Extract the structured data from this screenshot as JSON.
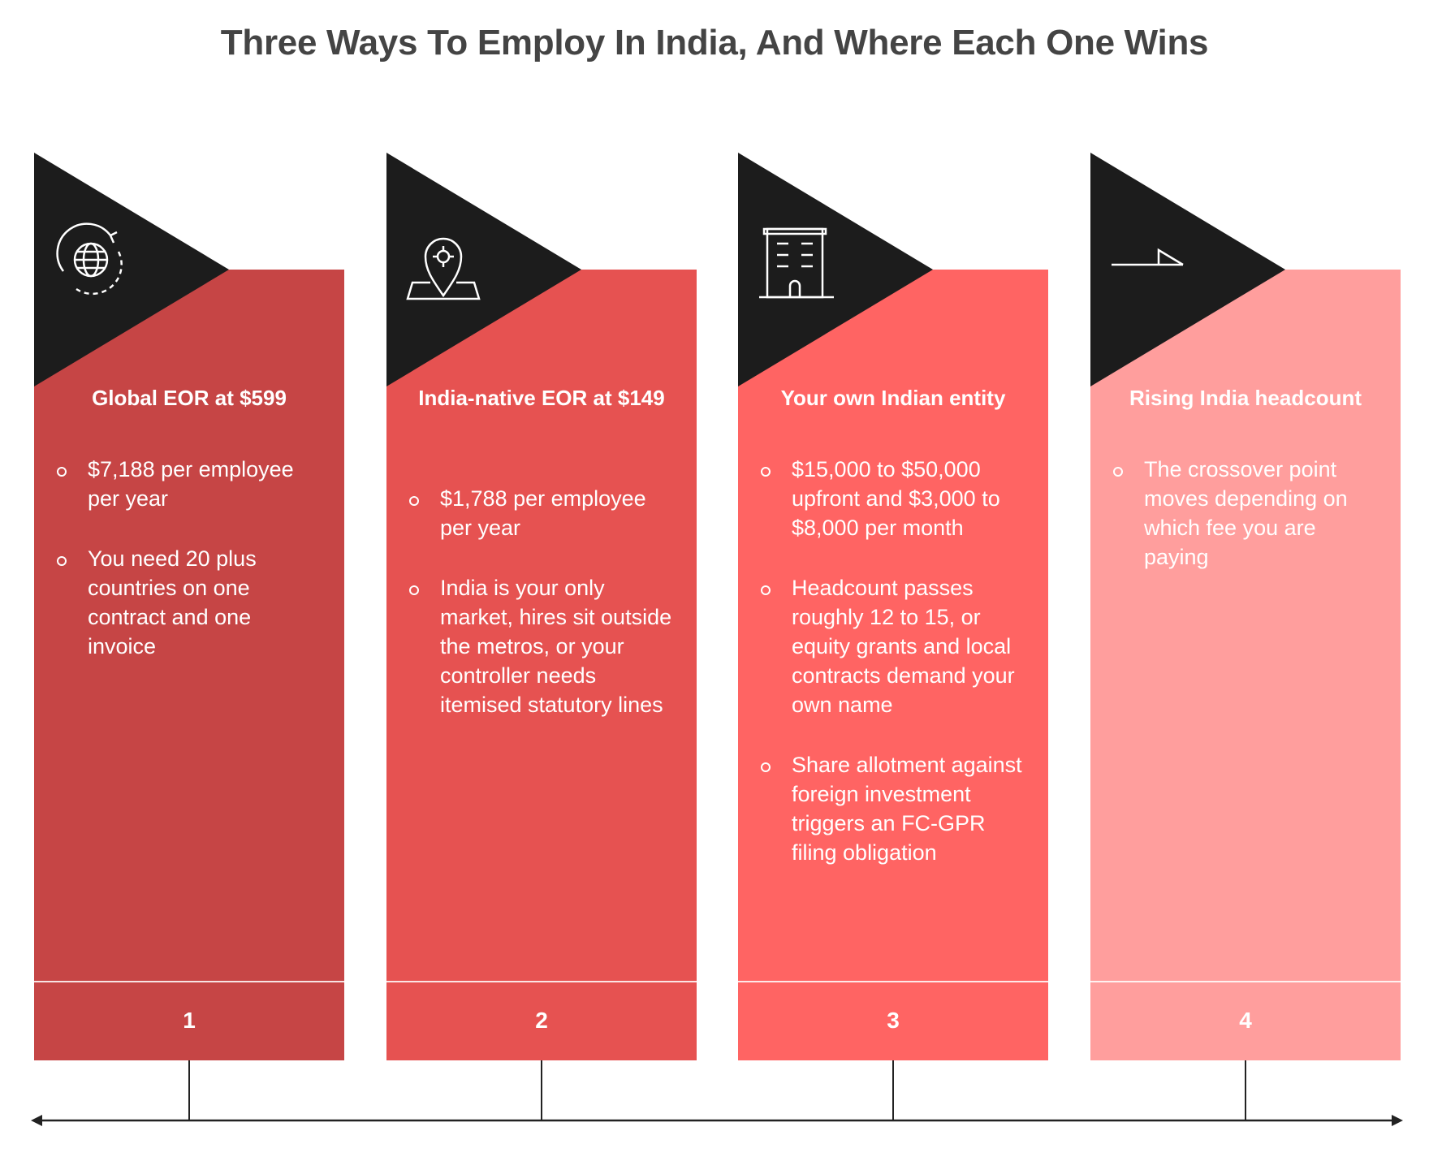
{
  "title": "Three Ways To Employ In India, And Where Each One Wins",
  "columns": [
    {
      "heading": "Global EOR at $599",
      "number": "1",
      "color": "#C64545",
      "icon": "globe-rotate-icon",
      "bullets": [
        "$7,188 per employee per year",
        "You need 20 plus countries on one contract and one invoice"
      ]
    },
    {
      "heading": "India-native EOR at $149",
      "number": "2",
      "color": "#E65251",
      "icon": "location-pin-icon",
      "bullets": [
        "$1,788 per employee per year",
        "India is your only market, hires sit outside the metros, or your controller needs itemised statutory lines"
      ]
    },
    {
      "heading": "Your own Indian entity",
      "number": "3",
      "color": "#FF6463",
      "icon": "office-building-icon",
      "bullets": [
        "$15,000 to $50,000 upfront and $3,000 to $8,000 per month",
        "Headcount passes roughly 12 to 15, or equity grants and local contracts demand your own name",
        "Share allotment against foreign investment triggers an FC-GPR filing obligation"
      ]
    },
    {
      "heading": "Rising India headcount",
      "number": "4",
      "color": "#FF9E9D",
      "icon": "rising-line-icon",
      "bullets": [
        "The crossover point moves depending on which fee you are paying"
      ]
    }
  ]
}
